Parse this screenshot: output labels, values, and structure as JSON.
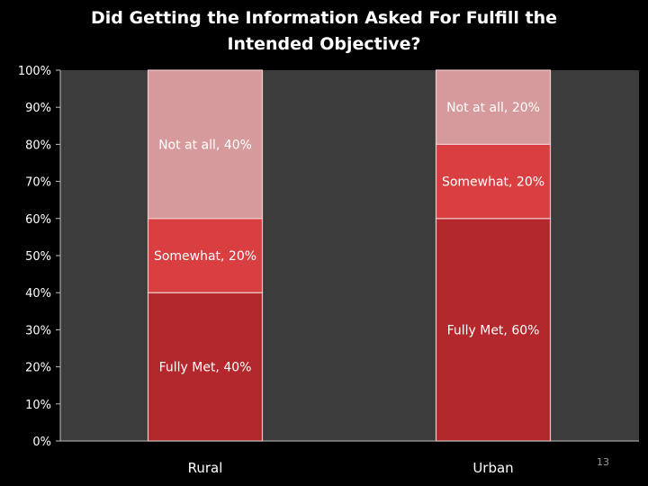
{
  "slide": {
    "title": "Did Getting the Information Asked For Fulfill the Intended Objective?",
    "page_number": "13"
  },
  "colors": {
    "background": "#000000",
    "plot_area": "#3c3c3c",
    "fully_met": "#b2282c",
    "somewhat": "#d93f41",
    "not_at_all": "#d69a9c",
    "text": "#ffffff"
  },
  "chart_data": {
    "type": "bar",
    "stacked": true,
    "percent": true,
    "title": "Did Getting the Information Asked For Fulfill the Intended Objective?",
    "categories": [
      "Rural",
      "Urban"
    ],
    "series": [
      {
        "name": "Fully Met",
        "values": [
          40,
          60
        ],
        "data_labels": [
          "Fully Met, 40%",
          "Fully Met, 60%"
        ]
      },
      {
        "name": "Somewhat",
        "values": [
          20,
          20
        ],
        "data_labels": [
          "Somewhat, 20%",
          "Somewhat, 20%"
        ]
      },
      {
        "name": "Not at all",
        "values": [
          40,
          20
        ],
        "data_labels": [
          "Not at all, 40%",
          "Not at all, 20%"
        ]
      }
    ],
    "ylim": [
      0,
      100
    ],
    "y_ticks": [
      "0%",
      "10%",
      "20%",
      "30%",
      "40%",
      "50%",
      "60%",
      "70%",
      "80%",
      "90%",
      "100%"
    ],
    "grid": false,
    "legend": "none"
  }
}
